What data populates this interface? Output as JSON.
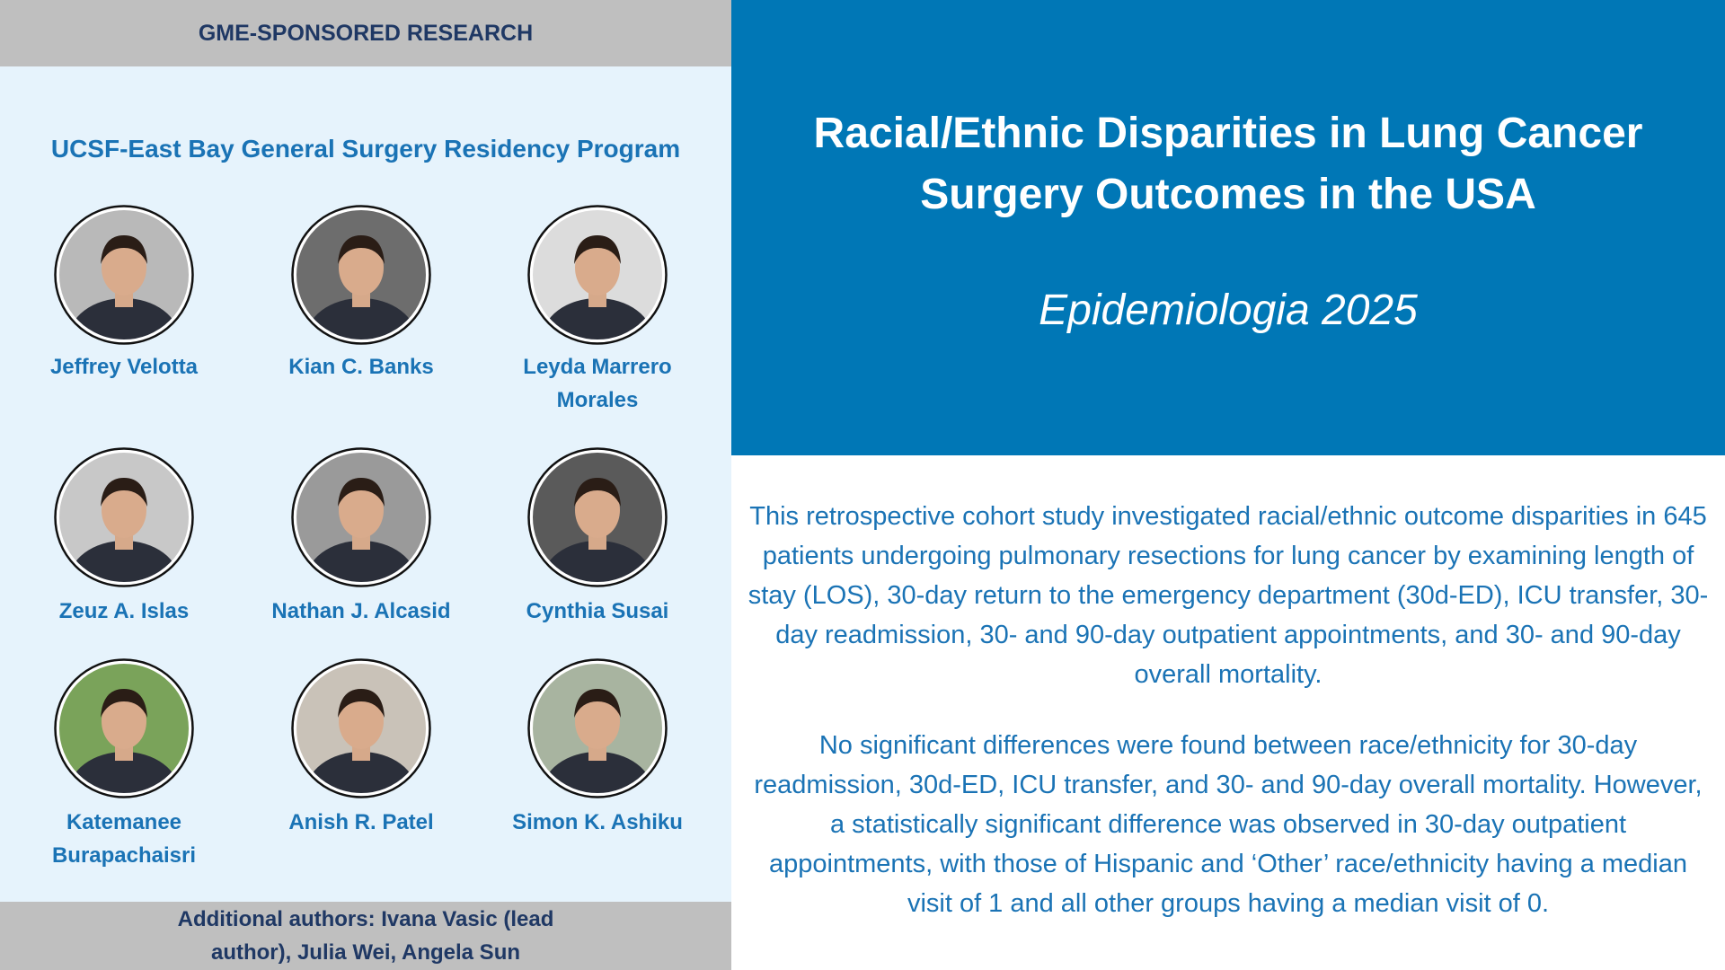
{
  "header": {
    "label": "GME-SPONSORED RESEARCH"
  },
  "program": {
    "title": "UCSF-East Bay General Surgery Residency Program"
  },
  "people": [
    {
      "name": "Jeffrey Velotta"
    },
    {
      "name": "Kian C. Banks"
    },
    {
      "name": "Leyda Marrero Morales"
    },
    {
      "name": "Zeuz A. Islas"
    },
    {
      "name": "Nathan J. Alcasid"
    },
    {
      "name": "Cynthia Susai"
    },
    {
      "name": "Katemanee Burapachaisri"
    },
    {
      "name": "Anish R. Patel"
    },
    {
      "name": "Simon K. Ashiku"
    }
  ],
  "footer": {
    "text": "Additional authors: Ivana Vasic (lead author), Julia Wei, Angela Sun"
  },
  "article": {
    "title": "Racial/Ethnic Disparities in Lung Cancer Surgery Outcomes in the USA",
    "journal": "Epidemiologia 2025",
    "paragraphs": [
      "This retrospective cohort study investigated racial/ethnic outcome disparities in 645 patients undergoing pulmonary resections for lung cancer by examining length of stay (LOS), 30-day return to the emergency department (30d-ED), ICU transfer, 30-day readmission, 30- and 90-day outpatient appointments, and 30- and 90-day overall mortality.",
      "No significant differences were found between race/ethnicity for 30-day readmission, 30d-ED, ICU transfer, and 30- and 90-day overall mortality. However, a statistically significant difference was observed in 30-day outpatient appointments, with those of Hispanic and ‘Other’ race/ethnicity having a median visit of 1 and all other groups having a median visit of 0."
    ]
  }
}
